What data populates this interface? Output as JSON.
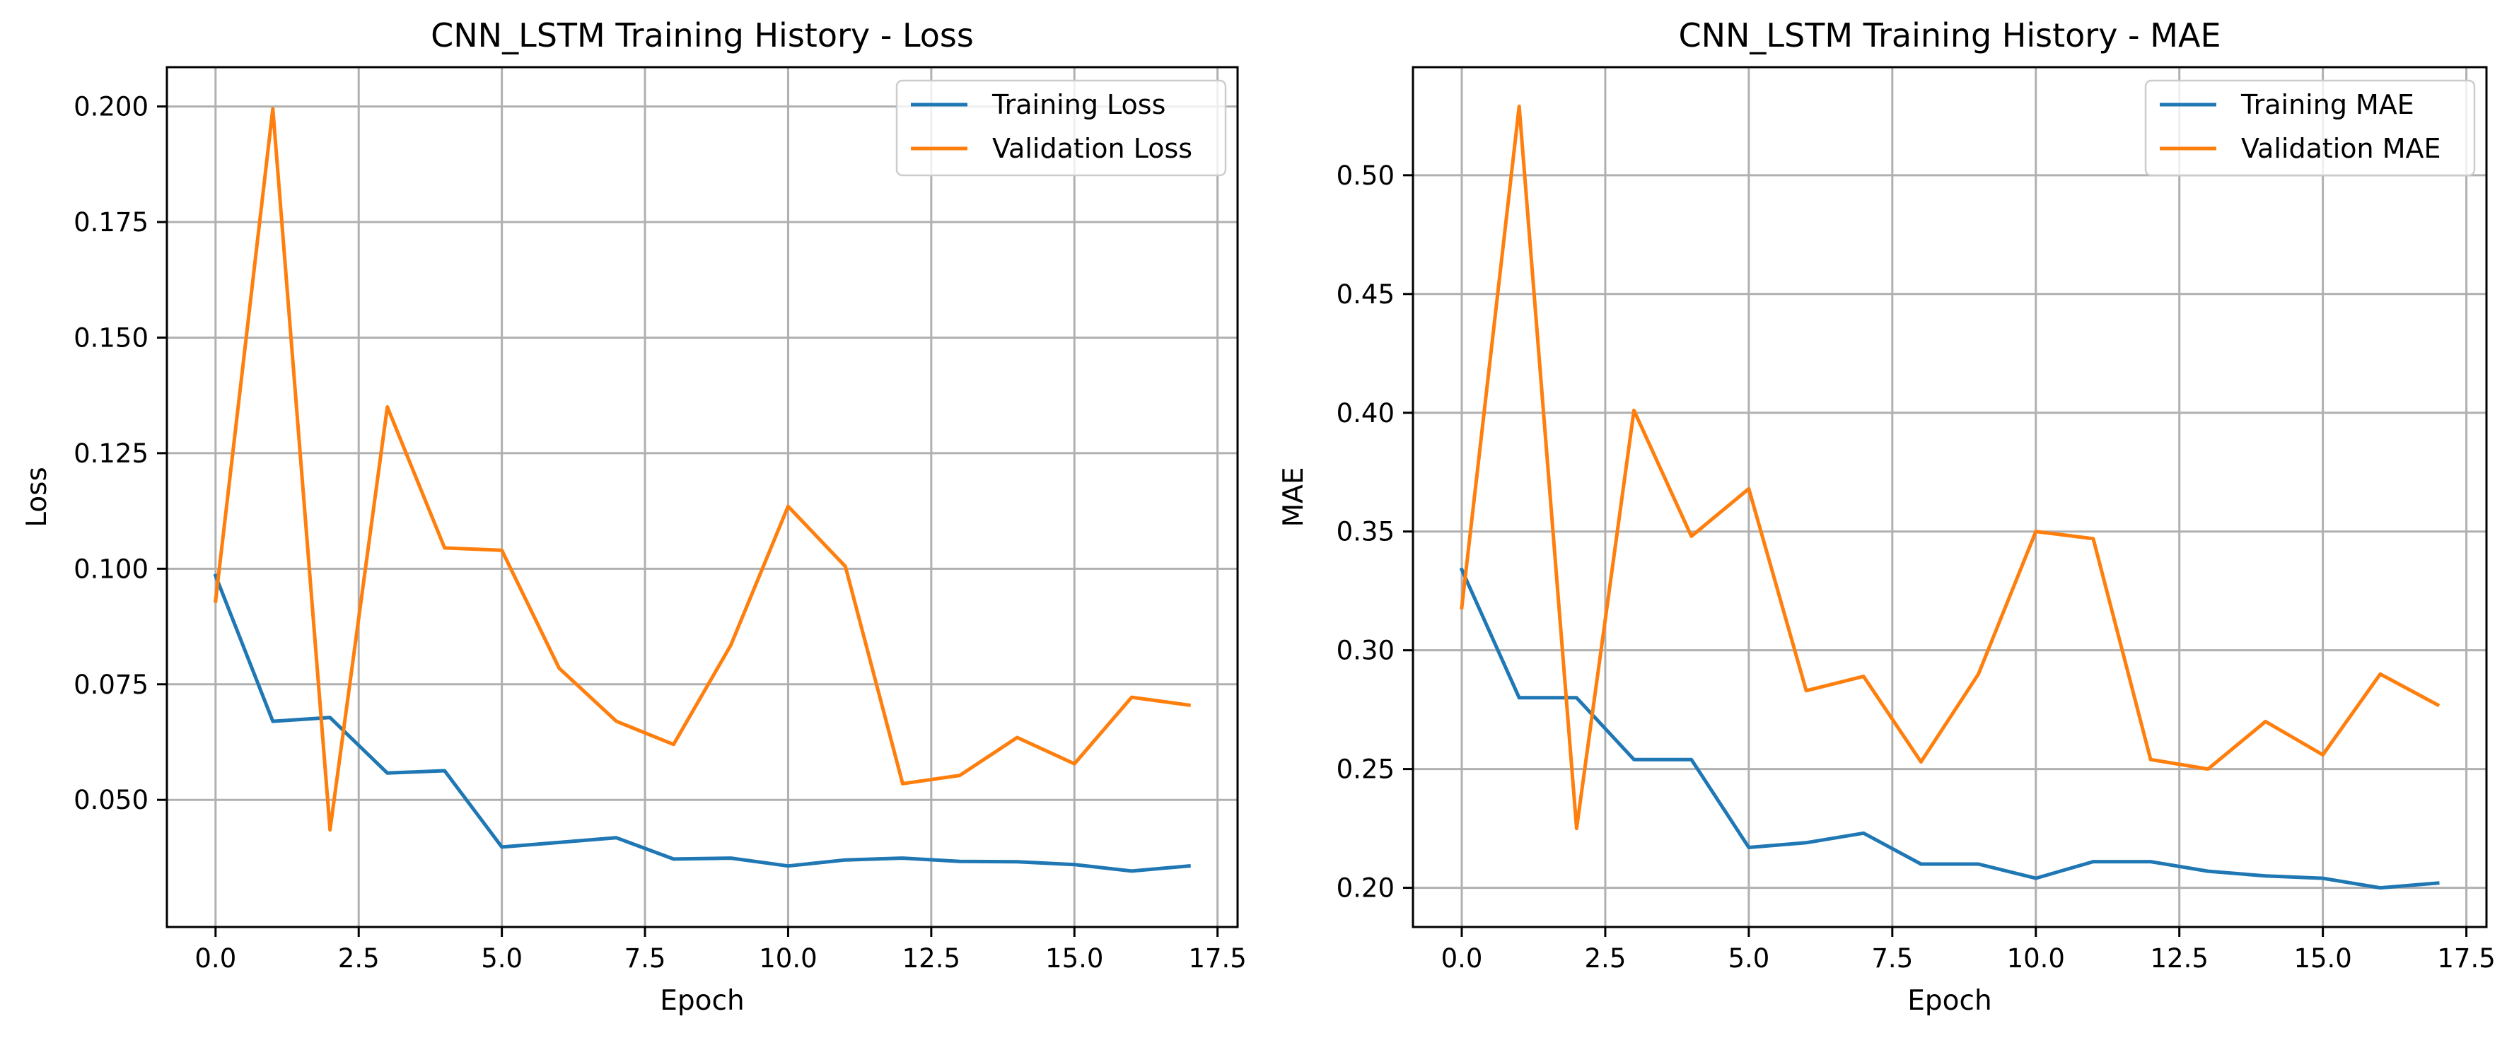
{
  "chart_data": [
    {
      "type": "line",
      "title": "CNN_LSTM Training History - Loss",
      "xlabel": "Epoch",
      "ylabel": "Loss",
      "xlim": [
        -0.85,
        17.85
      ],
      "ylim": [
        0.0225,
        0.2085
      ],
      "xticks": [
        0.0,
        2.5,
        5.0,
        7.5,
        10.0,
        12.5,
        15.0,
        17.5
      ],
      "xtick_labels": [
        "0.0",
        "2.5",
        "5.0",
        "7.5",
        "10.0",
        "12.5",
        "15.0",
        "17.5"
      ],
      "yticks": [
        0.05,
        0.075,
        0.1,
        0.125,
        0.15,
        0.175,
        0.2
      ],
      "ytick_labels": [
        "0.050",
        "0.075",
        "0.100",
        "0.125",
        "0.150",
        "0.175",
        "0.200"
      ],
      "grid": true,
      "legend_position": "top-right",
      "x": [
        0,
        1,
        2,
        3,
        4,
        5,
        6,
        7,
        8,
        9,
        10,
        11,
        12,
        13,
        14,
        15,
        16,
        17
      ],
      "series": [
        {
          "name": "Training Loss",
          "color": "#1f77b4",
          "values": [
            0.0985,
            0.067,
            0.0678,
            0.0558,
            0.0563,
            0.0398,
            0.0408,
            0.0418,
            0.0372,
            0.0374,
            0.0357,
            0.037,
            0.0374,
            0.0367,
            0.0366,
            0.036,
            0.0346,
            0.0357
          ]
        },
        {
          "name": "Validation Loss",
          "color": "#ff7f0e",
          "values": [
            0.093,
            0.1995,
            0.0435,
            0.135,
            0.1045,
            0.104,
            0.0785,
            0.067,
            0.062,
            0.0835,
            0.1135,
            0.1005,
            0.0535,
            0.0553,
            0.0635,
            0.0578,
            0.0722,
            0.0705
          ]
        }
      ]
    },
    {
      "type": "line",
      "title": "CNN_LSTM Training History - MAE",
      "xlabel": "Epoch",
      "ylabel": "MAE",
      "xlim": [
        -0.85,
        17.85
      ],
      "ylim": [
        0.1835,
        0.5455
      ],
      "xticks": [
        0.0,
        2.5,
        5.0,
        7.5,
        10.0,
        12.5,
        15.0,
        17.5
      ],
      "xtick_labels": [
        "0.0",
        "2.5",
        "5.0",
        "7.5",
        "10.0",
        "12.5",
        "15.0",
        "17.5"
      ],
      "yticks": [
        0.2,
        0.25,
        0.3,
        0.35,
        0.4,
        0.45,
        0.5
      ],
      "ytick_labels": [
        "0.20",
        "0.25",
        "0.30",
        "0.35",
        "0.40",
        "0.45",
        "0.50"
      ],
      "grid": true,
      "legend_position": "top-right",
      "x": [
        0,
        1,
        2,
        3,
        4,
        5,
        6,
        7,
        8,
        9,
        10,
        11,
        12,
        13,
        14,
        15,
        16,
        17
      ],
      "series": [
        {
          "name": "Training MAE",
          "color": "#1f77b4",
          "values": [
            0.334,
            0.28,
            0.28,
            0.254,
            0.254,
            0.217,
            0.219,
            0.223,
            0.21,
            0.21,
            0.204,
            0.211,
            0.211,
            0.207,
            0.205,
            0.204,
            0.2,
            0.202
          ]
        },
        {
          "name": "Validation MAE",
          "color": "#ff7f0e",
          "values": [
            0.318,
            0.529,
            0.225,
            0.401,
            0.348,
            0.368,
            0.283,
            0.289,
            0.253,
            0.29,
            0.35,
            0.347,
            0.254,
            0.25,
            0.27,
            0.256,
            0.29,
            0.277
          ]
        }
      ]
    }
  ]
}
